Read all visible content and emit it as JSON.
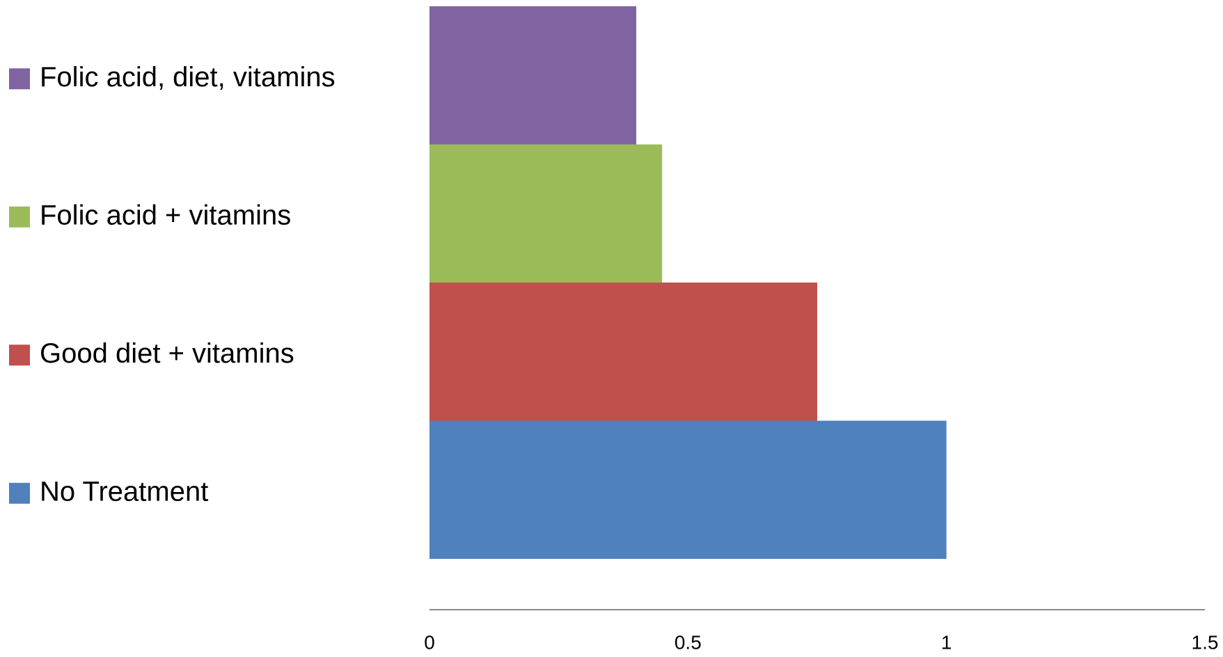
{
  "chart_data": {
    "type": "bar",
    "orientation": "horizontal",
    "series": [
      {
        "name": "No Treatment",
        "color": "#4f81bd",
        "values": [
          1.0
        ]
      },
      {
        "name": "Good diet + vitamins",
        "color": "#c0504d",
        "values": [
          0.75
        ]
      },
      {
        "name": "Folic acid + vitamins",
        "color": "#9bbb59",
        "values": [
          0.45
        ]
      },
      {
        "name": "Folic acid, diet, vitamins",
        "color": "#8064a2",
        "values": [
          0.4
        ]
      }
    ],
    "xlim": [
      0,
      1.5
    ],
    "xticks": [
      0,
      0.5,
      1,
      1.5
    ],
    "grid": false
  }
}
